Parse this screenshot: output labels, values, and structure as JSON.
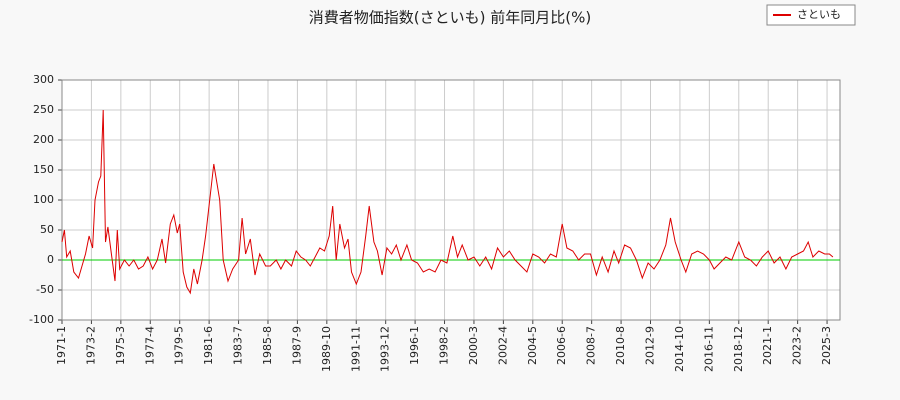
{
  "chart_data": {
    "type": "line",
    "title": "消費者物価指数(さといも) 前年同月比(%)",
    "x": [
      "1971-1",
      "1971-3",
      "1971-5",
      "1971-8",
      "1971-11",
      "1972-3",
      "1972-6",
      "1972-9",
      "1972-12",
      "1973-3",
      "1973-5",
      "1973-8",
      "1973-10",
      "1973-12",
      "1974-2",
      "1974-4",
      "1974-7",
      "1974-10",
      "1974-12",
      "1975-2",
      "1975-6",
      "1975-10",
      "1976-2",
      "1976-6",
      "1976-10",
      "1977-2",
      "1977-6",
      "1977-10",
      "1978-2",
      "1978-5",
      "1978-9",
      "1978-12",
      "1979-3",
      "1979-5",
      "1979-8",
      "1979-11",
      "1980-2",
      "1980-5",
      "1980-8",
      "1980-12",
      "1981-3",
      "1981-10",
      "1982-3",
      "1982-6",
      "1982-10",
      "1983-2",
      "1983-7",
      "1983-10",
      "1984-1",
      "1984-5",
      "1984-9",
      "1985-1",
      "1985-6",
      "1985-10",
      "1986-3",
      "1986-7",
      "1986-11",
      "1987-4",
      "1987-8",
      "1987-12",
      "1988-4",
      "1988-8",
      "1988-12",
      "1989-4",
      "1989-8",
      "1989-12",
      "1990-3",
      "1990-6",
      "1990-9",
      "1991-1",
      "1991-4",
      "1991-7",
      "1991-11",
      "1992-3",
      "1992-7",
      "1992-10",
      "1993-2",
      "1993-5",
      "1993-9",
      "1994-1",
      "1994-5",
      "1994-9",
      "1995-1",
      "1995-6",
      "1995-10",
      "1996-3",
      "1996-8",
      "1997-1",
      "1997-6",
      "1997-11",
      "1998-4",
      "1998-9",
      "1999-1",
      "1999-5",
      "1999-10",
      "2000-3",
      "2000-8",
      "2001-1",
      "2001-6",
      "2001-11",
      "2002-4",
      "2002-9",
      "2003-2",
      "2003-7",
      "2003-12",
      "2004-5",
      "2004-10",
      "2005-3",
      "2005-8",
      "2006-1",
      "2006-6",
      "2006-10",
      "2007-3",
      "2007-8",
      "2008-1",
      "2008-6",
      "2008-11",
      "2009-4",
      "2009-9",
      "2010-2",
      "2010-6",
      "2010-11",
      "2011-4",
      "2011-9",
      "2012-2",
      "2012-7",
      "2012-12",
      "2013-5",
      "2013-10",
      "2014-2",
      "2014-6",
      "2014-11",
      "2015-3",
      "2015-8",
      "2016-1",
      "2016-6",
      "2016-11",
      "2017-3",
      "2017-8",
      "2018-1",
      "2018-6",
      "2018-12",
      "2019-5",
      "2019-10",
      "2020-3",
      "2020-8",
      "2021-1",
      "2021-6",
      "2021-11",
      "2022-4",
      "2022-9",
      "2023-2",
      "2023-7",
      "2023-11",
      "2024-3",
      "2024-8",
      "2025-1",
      "2025-5",
      "2025-8"
    ],
    "series": [
      {
        "name": "さといも",
        "color": "#dd0000",
        "values": [
          30,
          50,
          5,
          15,
          -20,
          -30,
          -10,
          10,
          40,
          20,
          100,
          130,
          140,
          250,
          30,
          55,
          10,
          -35,
          50,
          -15,
          0,
          -10,
          0,
          -15,
          -10,
          5,
          -15,
          0,
          35,
          -5,
          60,
          75,
          45,
          60,
          -20,
          -45,
          -55,
          -15,
          -40,
          0,
          40,
          160,
          100,
          0,
          -35,
          -15,
          0,
          70,
          10,
          35,
          -25,
          10,
          -10,
          -10,
          0,
          -15,
          0,
          -10,
          15,
          5,
          0,
          -10,
          5,
          20,
          15,
          40,
          90,
          0,
          60,
          20,
          35,
          -20,
          -40,
          -20,
          40,
          90,
          30,
          15,
          -25,
          20,
          10,
          25,
          0,
          25,
          0,
          -5,
          -20,
          -15,
          -20,
          0,
          -5,
          40,
          5,
          25,
          0,
          5,
          -10,
          5,
          -15,
          20,
          5,
          15,
          0,
          -10,
          -20,
          10,
          5,
          -5,
          10,
          5,
          60,
          20,
          15,
          0,
          10,
          10,
          -25,
          5,
          -20,
          15,
          -5,
          25,
          20,
          0,
          -30,
          -5,
          -15,
          0,
          25,
          70,
          30,
          0,
          -20,
          10,
          15,
          10,
          0,
          -15,
          -5,
          5,
          0,
          30,
          5,
          0,
          -10,
          5,
          15,
          -5,
          5,
          -15,
          5,
          10,
          15,
          30,
          5,
          15,
          10,
          10,
          5
        ]
      }
    ],
    "xlim": [
      "1971-1",
      "2026-2"
    ],
    "xticks": [
      "1971-1",
      "1973-2",
      "1975-3",
      "1977-4",
      "1979-5",
      "1981-6",
      "1983-7",
      "1985-8",
      "1987-9",
      "1989-10",
      "1991-11",
      "1993-12",
      "1996-1",
      "1998-2",
      "2000-3",
      "2002-4",
      "2004-5",
      "2006-6",
      "2008-7",
      "2010-8",
      "2012-9",
      "2014-10",
      "2016-11",
      "2018-12",
      "2021-1",
      "2023-2",
      "2025-3"
    ],
    "ylim": [
      -100,
      300
    ],
    "yticks": [
      -100,
      -50,
      0,
      50,
      100,
      150,
      200,
      250,
      300
    ],
    "grid": true,
    "hline": {
      "value": 0,
      "color": "#00cc00"
    },
    "legend": "top-right"
  }
}
